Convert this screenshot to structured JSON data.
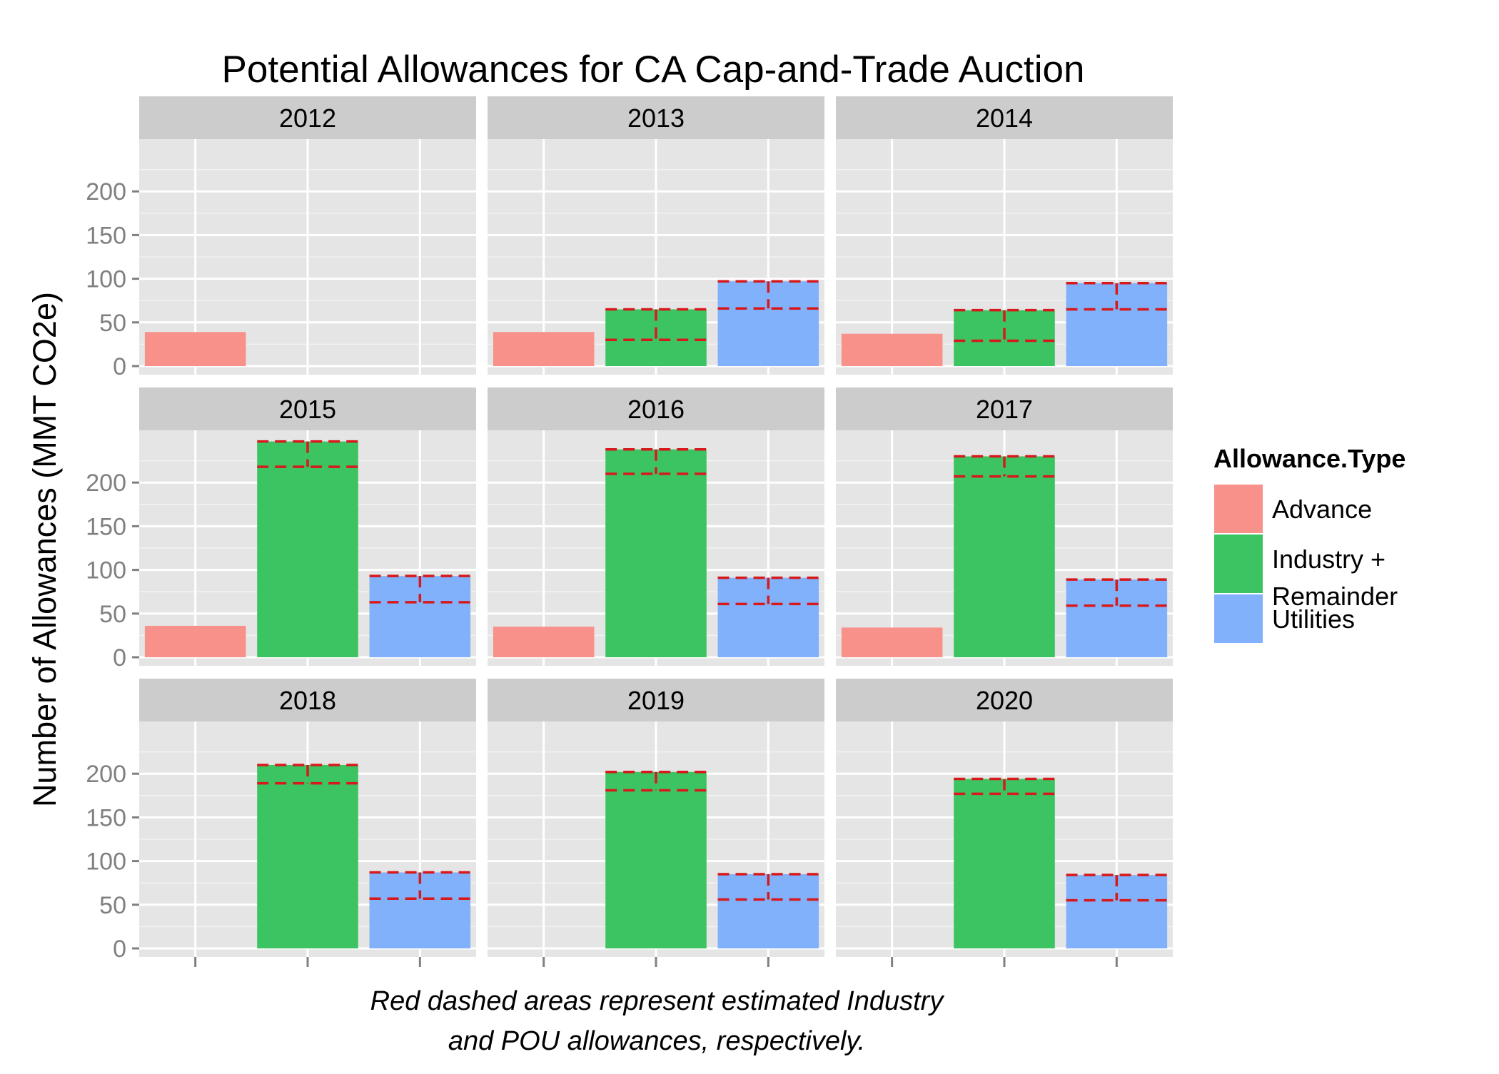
{
  "colors": {
    "panel_background": "#e5e5e5",
    "strip_background": "#cccccc",
    "grid_major": "#ffffff",
    "grid_minor": "#f2f2f2",
    "tick_label": "#808080",
    "dashed_estimate": "#d7191c",
    "Advance": "#f8918a",
    "Industry + Remainder": "#3cc462",
    "Utilities": "#82b1fb"
  },
  "chart_data": {
    "type": "bar",
    "facet_layout": "3x3 grid",
    "title": "Potential Allowances for CA Cap-and-Trade Auction",
    "ylabel": "Number of Allowances (MMT CO2e)",
    "xlabel": "",
    "caption": [
      "Red dashed areas represent estimated Industry",
      "and POU allowances, respectively."
    ],
    "yticks": [
      "0",
      "50",
      "100",
      "150",
      "200"
    ],
    "ylim": [
      0,
      250
    ],
    "grid": true,
    "legend": {
      "position": "right",
      "title": "Allowance.Type",
      "entries": [
        {
          "name": "Advance",
          "label_lines": [
            "Advance"
          ]
        },
        {
          "name": "Industry + Remainder",
          "label_lines": [
            "Industry +",
            "Remainder"
          ]
        },
        {
          "name": "Utilities",
          "label_lines": [
            "Utilities"
          ]
        }
      ]
    },
    "categories": [
      "Advance",
      "Industry + Remainder",
      "Utilities"
    ],
    "facets": [
      {
        "year": "2012",
        "bars": [
          {
            "category": "Advance",
            "value": 39
          }
        ]
      },
      {
        "year": "2013",
        "bars": [
          {
            "category": "Advance",
            "value": 39
          },
          {
            "category": "Industry + Remainder",
            "value": 65,
            "estimate_low": 30
          },
          {
            "category": "Utilities",
            "value": 97,
            "estimate_low": 66
          }
        ]
      },
      {
        "year": "2014",
        "bars": [
          {
            "category": "Advance",
            "value": 37
          },
          {
            "category": "Industry + Remainder",
            "value": 64,
            "estimate_low": 29
          },
          {
            "category": "Utilities",
            "value": 95,
            "estimate_low": 65
          }
        ]
      },
      {
        "year": "2015",
        "bars": [
          {
            "category": "Advance",
            "value": 36
          },
          {
            "category": "Industry + Remainder",
            "value": 247,
            "estimate_low": 218
          },
          {
            "category": "Utilities",
            "value": 93,
            "estimate_low": 63
          }
        ]
      },
      {
        "year": "2016",
        "bars": [
          {
            "category": "Advance",
            "value": 35
          },
          {
            "category": "Industry + Remainder",
            "value": 238,
            "estimate_low": 210
          },
          {
            "category": "Utilities",
            "value": 91,
            "estimate_low": 61
          }
        ]
      },
      {
        "year": "2017",
        "bars": [
          {
            "category": "Advance",
            "value": 34
          },
          {
            "category": "Industry + Remainder",
            "value": 230,
            "estimate_low": 207
          },
          {
            "category": "Utilities",
            "value": 89,
            "estimate_low": 59
          }
        ]
      },
      {
        "year": "2018",
        "bars": [
          {
            "category": "Industry + Remainder",
            "value": 210,
            "estimate_low": 189
          },
          {
            "category": "Utilities",
            "value": 87,
            "estimate_low": 57
          }
        ]
      },
      {
        "year": "2019",
        "bars": [
          {
            "category": "Industry + Remainder",
            "value": 202,
            "estimate_low": 181
          },
          {
            "category": "Utilities",
            "value": 85,
            "estimate_low": 56
          }
        ]
      },
      {
        "year": "2020",
        "bars": [
          {
            "category": "Industry + Remainder",
            "value": 194,
            "estimate_low": 177
          },
          {
            "category": "Utilities",
            "value": 84,
            "estimate_low": 55
          }
        ]
      }
    ]
  }
}
